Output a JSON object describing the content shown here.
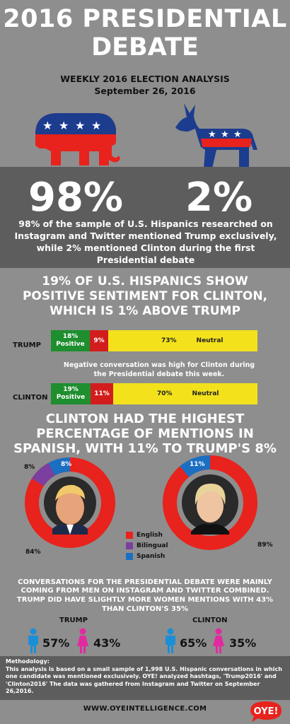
{
  "header": {
    "title_line1": "2016 PRESIDENTIAL",
    "title_line2": "DEBATE",
    "subtitle": "WEEKLY 2016 ELECTION ANALYSIS",
    "date": "September 26, 2016"
  },
  "stats": {
    "trump_pct": "98%",
    "clinton_pct": "2%",
    "description": "98% of the sample of U.S. Hispanics researched on Instagram and Twitter mentioned Trump exclusively, while 2% mentioned Clinton during the first Presidential debate"
  },
  "sentiment": {
    "heading_line1": "19% OF U.S. HISPANICS SHOW",
    "heading_line2": "POSITIVE SENTIMENT FOR CLINTON,",
    "heading_line3": "WHICH IS 1% ABOVE TRUMP",
    "trump": {
      "label": "TRUMP",
      "positive": "18%",
      "positive_word": "Positive",
      "negative": "9%",
      "neutral": "73%",
      "neutral_word": "Neutral"
    },
    "note": "Negative conversation was high for Clinton during the Presidential debate this week.",
    "clinton": {
      "label": "CLINTON",
      "positive": "19%",
      "positive_word": "Positive",
      "negative": "11%",
      "neutral": "70%",
      "neutral_word": "Neutral"
    }
  },
  "language": {
    "heading_line1": "CLINTON HAD THE HIGHEST",
    "heading_line2": "PERCENTAGE OF MENTIONS IN",
    "heading_line3": "SPANISH, WITH 11% TO TRUMP'S 8%",
    "trump": {
      "english": "84%",
      "bilingual": "8%",
      "spanish": "8%"
    },
    "clinton": {
      "english": "89%",
      "spanish": "11%"
    },
    "legend": [
      "English",
      "Bilingual",
      "Spanish"
    ],
    "colors": {
      "english": "#e8221c",
      "bilingual": "#7b3fa0",
      "spanish": "#1b6fc2"
    }
  },
  "gender": {
    "heading_line1": "CONVERSATIONS FOR THE PRESIDENTIAL DEBATE WERE MAINLY",
    "heading_line2": "COMING FROM MEN ON INSTAGRAM AND TWITTER COMBINED.",
    "heading_line3": "TRUMP DID HAVE SLIGHTLY MORE WOMEN MENTIONS WITH 43%",
    "heading_line4": "THAN CLINTON'S 35%",
    "trump": {
      "label": "TRUMP",
      "men": "57%",
      "women": "43%"
    },
    "clinton": {
      "label": "CLINTON",
      "men": "65%",
      "women": "35%"
    }
  },
  "methodology": {
    "title": "Methodology:",
    "text": "This analysis is based on a small sample of 1,998 U.S. Hispanic conversations in which one candidate was mentioned exclusively. OYE! analyzed hashtags, 'Trump2016' and 'Clinton2016' The data was gathered from Instagram and Twitter on September 26,2016."
  },
  "footer": {
    "url": "WWW.OYEINTELLIGENCE.COM",
    "logo_text": "OYE!"
  }
}
